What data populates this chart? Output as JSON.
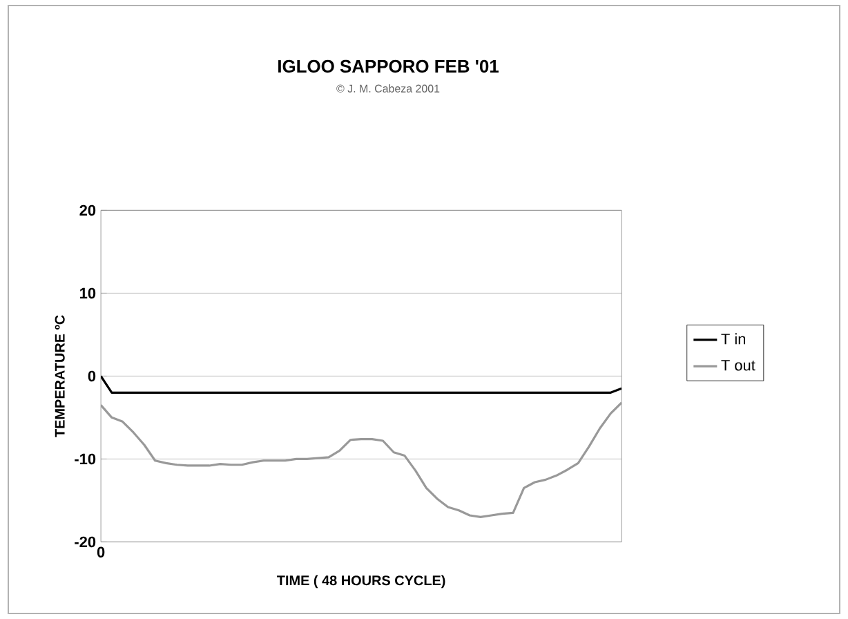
{
  "chart_data": {
    "type": "line",
    "title": "IGLOO SAPPORO FEB '01",
    "subtitle": "© J. M. Cabeza 2001",
    "xlabel": "TIME ( 48 HOURS CYCLE)",
    "ylabel": "TEMPERATURE ºC",
    "categories": [
      "0",
      null,
      null,
      null,
      null,
      null,
      null,
      null,
      null,
      null,
      null,
      null,
      null,
      null,
      null,
      null,
      null,
      null,
      null,
      null,
      null,
      null,
      null,
      null,
      null,
      null,
      null,
      null,
      null,
      null,
      null,
      null,
      null,
      null,
      null,
      null,
      null,
      null,
      null,
      null,
      null,
      null,
      null,
      null,
      null,
      null,
      null,
      null,
      null
    ],
    "series": [
      {
        "name": "T in",
        "color": "#000000",
        "values": [
          0,
          -2,
          -2,
          -2,
          -2,
          -2,
          -2,
          -2,
          -2,
          -2,
          -2,
          -2,
          -2,
          -2,
          -2,
          -2,
          -2,
          -2,
          -2,
          -2,
          -2,
          -2,
          -2,
          -2,
          -2,
          -2,
          -2,
          -2,
          -2,
          -2,
          -2,
          -2,
          -2,
          -2,
          -2,
          -2,
          -2,
          -2,
          -2,
          -2,
          -2,
          -2,
          -2,
          -2,
          -2,
          -2,
          -2,
          -2,
          -1.5
        ]
      },
      {
        "name": "T out",
        "color": "#999999",
        "values": [
          -3.5,
          -5,
          -5.5,
          -6.8,
          -8.3,
          -10.2,
          -10.5,
          -10.7,
          -10.8,
          -10.8,
          -10.8,
          -10.6,
          -10.7,
          -10.7,
          -10.4,
          -10.2,
          -10.2,
          -10.2,
          -10,
          -10,
          -9.9,
          -9.8,
          -9,
          -7.7,
          -7.6,
          -7.6,
          -7.8,
          -9.2,
          -9.6,
          -11.4,
          -13.5,
          -14.8,
          -15.8,
          -16.2,
          -16.8,
          -17,
          -16.8,
          -16.6,
          -16.5,
          -13.5,
          -12.8,
          -12.5,
          -12,
          -11.3,
          -10.5,
          -8.5,
          -6.3,
          -4.5,
          -3.2
        ]
      }
    ],
    "ylim": [
      -20,
      20
    ],
    "yticks": [
      -20,
      -10,
      0,
      10,
      20
    ],
    "grid": "y",
    "legend": "right",
    "marker": "none"
  }
}
